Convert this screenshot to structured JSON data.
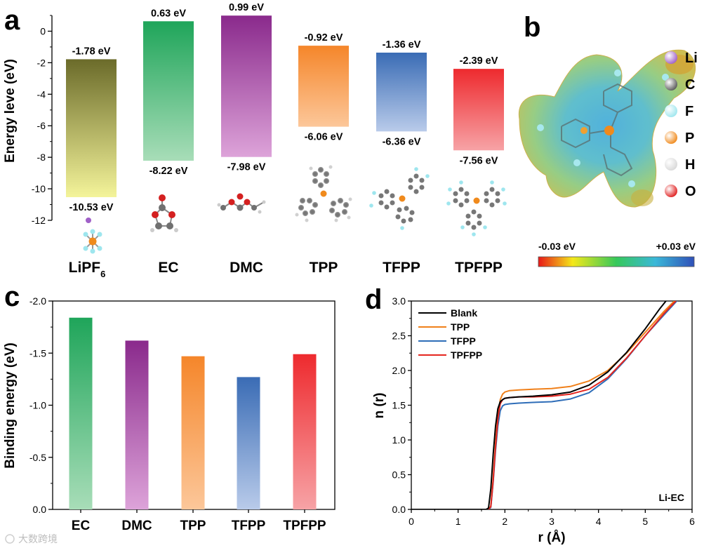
{
  "panels": {
    "a": "a",
    "b": "b",
    "c": "c",
    "d": "d"
  },
  "colors": {
    "LiPF6": [
      "#6b6b2a",
      "#f4f49a"
    ],
    "EC": [
      "#1fa55a",
      "#a8ddb8"
    ],
    "DMC": [
      "#8a2a8c",
      "#dda3d9"
    ],
    "TPP": [
      "#f5862a",
      "#fcc79a"
    ],
    "TFPP": [
      "#3a6cb5",
      "#b9cbea"
    ],
    "TPFPP": [
      "#ee2a2e",
      "#f7a3a6"
    ],
    "Blank": "#000000",
    "TPP_line": "#f0801a",
    "TFPP_line": "#2e6db8",
    "TPFPP_line": "#e52620"
  },
  "chart_data": [
    {
      "id": "a",
      "type": "bar",
      "subtype": "floating",
      "ylabel": "Energy leve (eV)",
      "ylim": [
        -12,
        1
      ],
      "yticks": [
        "0",
        "-2",
        "-4",
        "-6",
        "-8",
        "-10",
        "-12"
      ],
      "categories": [
        "LiPF6",
        "EC",
        "DMC",
        "TPP",
        "TFPP",
        "TPFPP"
      ],
      "category_labels": [
        {
          "main": "LiPF",
          "sub": "6"
        },
        {
          "main": "EC",
          "sub": ""
        },
        {
          "main": "DMC",
          "sub": ""
        },
        {
          "main": "TPP",
          "sub": ""
        },
        {
          "main": "TFPP",
          "sub": ""
        },
        {
          "main": "TPFPP",
          "sub": ""
        }
      ],
      "top": [
        -1.78,
        0.63,
        0.99,
        -0.92,
        -1.36,
        -2.39
      ],
      "bottom": [
        -10.53,
        -8.22,
        -7.98,
        -6.06,
        -6.36,
        -7.56
      ],
      "top_labels": [
        "-1.78 eV",
        "0.63 eV",
        "0.99 eV",
        "-0.92 eV",
        "-1.36 eV",
        "-2.39 eV"
      ],
      "bottom_labels": [
        "-10.53 eV",
        "-8.22 eV",
        "-7.98 eV",
        "-6.06 eV",
        "-6.36 eV",
        "-7.56 eV"
      ]
    },
    {
      "id": "c",
      "type": "bar",
      "ylabel": "Binding energy (eV)",
      "ylim": [
        0,
        -2.0
      ],
      "yticks": [
        "-2.0",
        "-1.5",
        "-1.0",
        "-0.5",
        "0.0"
      ],
      "categories": [
        "EC",
        "DMC",
        "TPP",
        "TFPP",
        "TPFPP"
      ],
      "values": [
        -1.84,
        -1.62,
        -1.47,
        -1.27,
        -1.49
      ]
    },
    {
      "id": "d",
      "type": "line",
      "xlabel": "r (Å)",
      "ylabel": "n (r)",
      "xlim": [
        0,
        6
      ],
      "ylim": [
        0,
        3.0
      ],
      "xticks": [
        "0",
        "1",
        "2",
        "3",
        "4",
        "5",
        "6"
      ],
      "yticks": [
        "0.0",
        "0.5",
        "1.0",
        "1.5",
        "2.0",
        "2.5",
        "3.0"
      ],
      "annotation": "Li-EC",
      "legend": "top-left",
      "series": [
        {
          "name": "Blank",
          "x": [
            0,
            1.6,
            1.65,
            1.7,
            1.75,
            1.8,
            1.85,
            1.9,
            1.95,
            2.0,
            2.1,
            2.3,
            2.6,
            3.0,
            3.4,
            3.8,
            4.2,
            4.6,
            5.0,
            5.3,
            5.5
          ],
          "y": [
            0,
            0,
            0.02,
            0.3,
            0.8,
            1.2,
            1.45,
            1.55,
            1.58,
            1.6,
            1.61,
            1.62,
            1.63,
            1.65,
            1.69,
            1.79,
            1.98,
            2.26,
            2.6,
            2.88,
            3.05
          ]
        },
        {
          "name": "TPP",
          "x": [
            0,
            1.65,
            1.7,
            1.75,
            1.8,
            1.85,
            1.9,
            1.95,
            2.0,
            2.1,
            2.3,
            2.6,
            3.0,
            3.4,
            3.8,
            4.2,
            4.6,
            5.0,
            5.4,
            5.65
          ],
          "y": [
            0,
            0,
            0.05,
            0.45,
            0.95,
            1.35,
            1.58,
            1.66,
            1.69,
            1.71,
            1.72,
            1.73,
            1.74,
            1.77,
            1.85,
            2.0,
            2.25,
            2.55,
            2.85,
            3.02
          ]
        },
        {
          "name": "TFPP",
          "x": [
            0,
            1.65,
            1.7,
            1.75,
            1.8,
            1.85,
            1.9,
            1.95,
            2.0,
            2.1,
            2.3,
            2.6,
            3.0,
            3.4,
            3.8,
            4.2,
            4.6,
            5.0,
            5.4,
            5.7
          ],
          "y": [
            0,
            0,
            0.03,
            0.4,
            0.85,
            1.2,
            1.42,
            1.49,
            1.51,
            1.52,
            1.53,
            1.54,
            1.55,
            1.59,
            1.68,
            1.88,
            2.17,
            2.5,
            2.8,
            3.02
          ]
        },
        {
          "name": "TPFPP",
          "x": [
            0,
            1.65,
            1.7,
            1.75,
            1.8,
            1.85,
            1.9,
            1.95,
            2.0,
            2.1,
            2.3,
            2.6,
            3.0,
            3.4,
            3.8,
            4.2,
            4.6,
            5.0,
            5.4,
            5.68
          ],
          "y": [
            0,
            0,
            0.04,
            0.42,
            0.9,
            1.3,
            1.52,
            1.58,
            1.6,
            1.61,
            1.62,
            1.62,
            1.63,
            1.66,
            1.73,
            1.9,
            2.18,
            2.5,
            2.82,
            3.02
          ]
        }
      ]
    }
  ],
  "legend_b": {
    "items": [
      {
        "symbol": "Li",
        "color": "#a060c8"
      },
      {
        "symbol": "C",
        "color": "#5a5a5a"
      },
      {
        "symbol": "F",
        "color": "#9ee6ee"
      },
      {
        "symbol": "P",
        "color": "#f08a1c"
      },
      {
        "symbol": "H",
        "color": "#d8d8d8"
      },
      {
        "symbol": "O",
        "color": "#e02020"
      }
    ],
    "scale_min": "-0.03 eV",
    "scale_max": "+0.03 eV"
  },
  "watermark": "大数跨境"
}
